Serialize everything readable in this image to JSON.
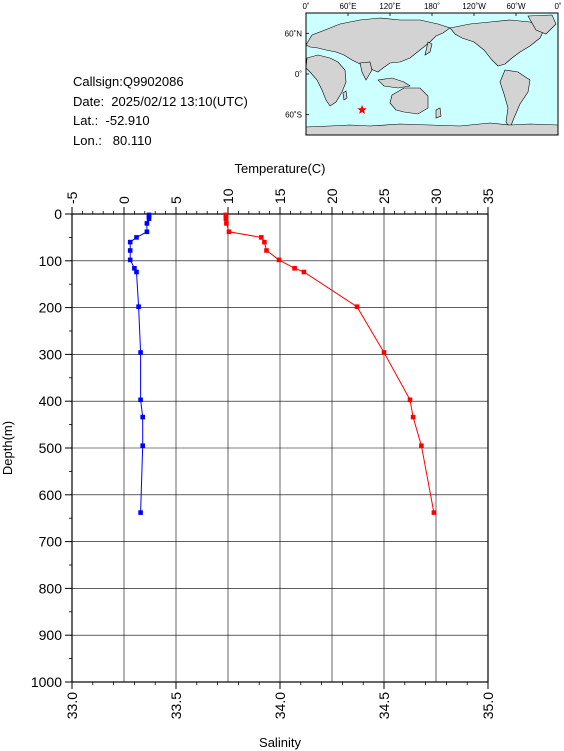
{
  "station": {
    "callsign": "Callsign:Q9902086",
    "date": "Date:  2025/02/12 13:10(UTC)",
    "lat": "Lat.:  -52.910",
    "lon": "Lon.:   80.110"
  },
  "map": {
    "lon_labels": [
      "0˚",
      "60˚E",
      "120˚E",
      "180˚",
      "120˚W",
      "60˚W",
      "0˚"
    ],
    "lat_labels": [
      "60˚N",
      "0˚",
      "60˚S"
    ],
    "ocean_color": "#ccffff",
    "land_color": "#d3d3d3",
    "marker_color": "#ff0000",
    "marker": {
      "lon": 80.11,
      "lat": -52.91
    }
  },
  "chart_data": {
    "type": "line",
    "top_axis": {
      "label": "Temperature(C)",
      "range": [
        -5,
        35
      ],
      "ticks": [
        "-5",
        "0",
        "5",
        "10",
        "15",
        "20",
        "25",
        "30",
        "35"
      ]
    },
    "bottom_axis": {
      "label": "Salinity",
      "range": [
        33.0,
        35.0
      ],
      "ticks": [
        "33.0",
        "33.5",
        "34.0",
        "34.5",
        "35.0"
      ]
    },
    "y_axis": {
      "label": "Depth(m)",
      "range": [
        0,
        1000
      ],
      "inverted": true,
      "ticks": [
        "0",
        "100",
        "200",
        "300",
        "400",
        "500",
        "600",
        "700",
        "800",
        "900",
        "1000"
      ]
    },
    "grid": true,
    "series": [
      {
        "axis": "temperature",
        "color": "#ff0000",
        "points": [
          [
            9.8,
            2
          ],
          [
            9.8,
            5
          ],
          [
            9.8,
            10
          ],
          [
            9.85,
            20
          ],
          [
            10.1,
            38
          ],
          [
            13.2,
            50
          ],
          [
            13.5,
            60
          ],
          [
            13.7,
            78
          ],
          [
            14.9,
            98
          ],
          [
            16.4,
            116
          ],
          [
            17.3,
            124
          ],
          [
            22.4,
            198
          ],
          [
            25.0,
            296
          ],
          [
            27.5,
            397
          ],
          [
            27.8,
            434
          ],
          [
            28.6,
            495
          ],
          [
            29.8,
            638
          ]
        ]
      },
      {
        "axis": "salinity",
        "color": "#0000ff",
        "points": [
          [
            33.37,
            2
          ],
          [
            33.37,
            5
          ],
          [
            33.37,
            10
          ],
          [
            33.36,
            20
          ],
          [
            33.36,
            38
          ],
          [
            33.31,
            50
          ],
          [
            33.28,
            60
          ],
          [
            33.28,
            78
          ],
          [
            33.28,
            98
          ],
          [
            33.3,
            116
          ],
          [
            33.31,
            124
          ],
          [
            33.32,
            198
          ],
          [
            33.33,
            296
          ],
          [
            33.33,
            397
          ],
          [
            33.34,
            434
          ],
          [
            33.34,
            495
          ],
          [
            33.33,
            638
          ]
        ]
      }
    ]
  }
}
